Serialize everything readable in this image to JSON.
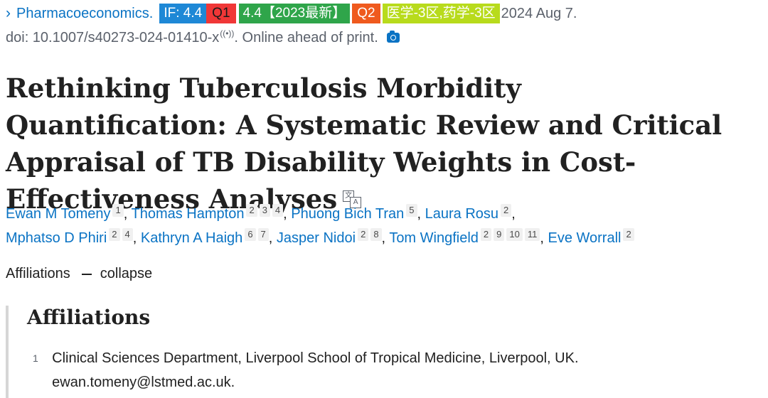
{
  "header": {
    "journal": "Pharmacoeconomics.",
    "badges": {
      "impact_factor": "IF: 4.4",
      "quartile_1": "Q1",
      "cas_rank": "4.4【2023最新】",
      "quartile_2": "Q2",
      "category": "医学-3区,药学-3区"
    },
    "date": "2024 Aug 7.",
    "doi": "doi: 10.1007/s40273-024-01410-x",
    "online_status": ". Online ahead of print.",
    "wave_glyph": "((•))"
  },
  "title": "Rethinking Tuberculosis Morbidity Quantification: A Systematic Review and Critical Appraisal of TB Disability Weights in Cost-Effectiveness Analyses",
  "authors_line1": [
    {
      "name": "Ewan M Tomeny",
      "sups": [
        "1"
      ]
    },
    {
      "name": "Thomas Hampton",
      "sups": [
        "2",
        "3",
        "4"
      ]
    },
    {
      "name": "Phuong Bich Tran",
      "sups": [
        "5"
      ]
    },
    {
      "name": "Laura Rosu",
      "sups": [
        "2"
      ]
    }
  ],
  "authors_line2": [
    {
      "name": "Mphatso D Phiri",
      "sups": [
        "2",
        "4"
      ]
    },
    {
      "name": "Kathryn A Haigh",
      "sups": [
        "6",
        "7"
      ]
    },
    {
      "name": "Jasper Nidoi",
      "sups": [
        "2",
        "8"
      ]
    },
    {
      "name": "Tom Wingfield",
      "sups": [
        "2",
        "9",
        "10",
        "11"
      ]
    },
    {
      "name": "Eve Worrall",
      "sups": [
        "2"
      ]
    }
  ],
  "affiliations_toggle": {
    "label": "Affiliations",
    "action": "collapse"
  },
  "affiliations": {
    "heading": "Affiliations",
    "items": [
      {
        "number": "1",
        "text": "Clinical Sciences Department, Liverpool School of Tropical Medicine, Liverpool, UK. ewan.tomeny@lstmed.ac.uk."
      }
    ]
  },
  "colors": {
    "link": "#0a73c4",
    "if_badge": "#1e88d6",
    "q1_badge": "#f03737",
    "cas_badge": "#2fa54a",
    "q2_badge": "#ef5a1e",
    "category_badge": "#b8db1c"
  }
}
